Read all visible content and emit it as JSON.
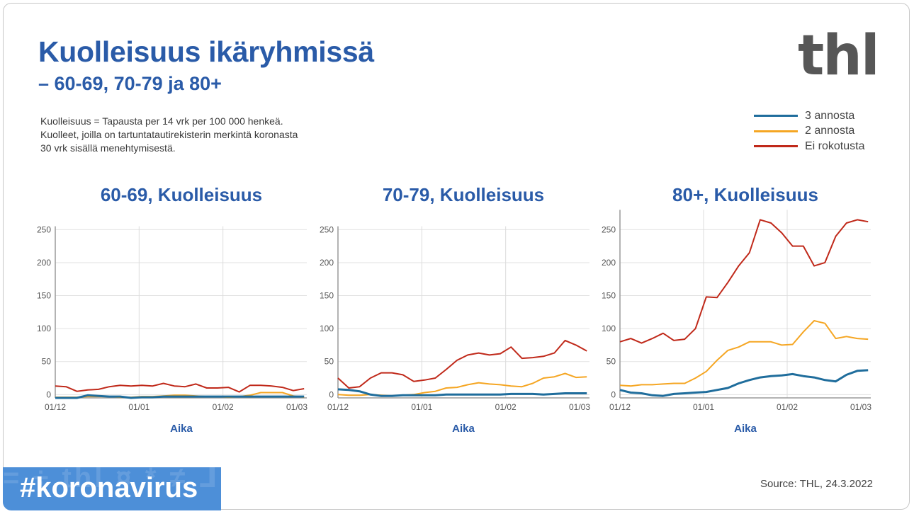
{
  "header": {
    "title": "Kuolleisuus ikäryhmissä",
    "subtitle": "– 60-69, 70-79 ja 80+",
    "logo": "thl",
    "note": [
      "Kuolleisuus = Tapausta per 14 vrk per 100 000 henkeä.",
      "Kuolleet, joilla on tartuntatautirekisterin merkintä koronasta",
      "30 vrk sisällä menehtymisestä."
    ]
  },
  "legend": [
    {
      "label": "3 annosta",
      "color": "#1f6d9c"
    },
    {
      "label": "2 annosta",
      "color": "#f5a623"
    },
    {
      "label": "Ei rokotusta",
      "color": "#c0291a"
    }
  ],
  "footer": {
    "source": "Source: THL, 24.3.2022",
    "hashtag": "#koronavirus"
  },
  "chart_data": [
    {
      "type": "line",
      "title": "60-69, Kuolleisuus",
      "xlabel": "Aika",
      "ylabel": "",
      "ylim": [
        -5,
        255
      ],
      "yticks": [
        0,
        50,
        100,
        150,
        200,
        250
      ],
      "xticks": [
        {
          "date": "2021-12-01",
          "label": "01/12"
        },
        {
          "date": "2022-01-01",
          "label": "01/01"
        },
        {
          "date": "2022-02-01",
          "label": "01/02"
        },
        {
          "date": "2022-03-01",
          "label": "01/03"
        }
      ],
      "xlim": [
        "2021-12-01",
        "2022-03-04"
      ],
      "grid": true,
      "x": [
        "2021-12-01",
        "2021-12-05",
        "2021-12-09",
        "2021-12-13",
        "2021-12-17",
        "2021-12-21",
        "2021-12-25",
        "2021-12-29",
        "2022-01-02",
        "2022-01-06",
        "2022-01-10",
        "2022-01-14",
        "2022-01-18",
        "2022-01-22",
        "2022-01-26",
        "2022-01-30",
        "2022-02-03",
        "2022-02-07",
        "2022-02-11",
        "2022-02-15",
        "2022-02-19",
        "2022-02-23",
        "2022-02-27",
        "2022-03-03"
      ],
      "series": [
        {
          "name": "Ei rokotusta",
          "values": [
            13,
            12,
            5,
            7,
            8,
            12,
            14,
            13,
            14,
            13,
            17,
            13,
            12,
            16,
            10,
            10,
            11,
            4,
            14,
            14,
            13,
            11,
            6,
            9
          ]
        },
        {
          "name": "2 annosta",
          "values": [
            -4,
            -4,
            -4,
            -3,
            -3,
            -3,
            -4,
            -4,
            -3,
            -3,
            -2,
            -1,
            -1,
            -2,
            -3,
            -3,
            -4,
            -3,
            -1,
            3,
            3,
            3,
            -2,
            -4
          ]
        },
        {
          "name": "3 annosta",
          "values": [
            -5,
            -5,
            -5,
            -1,
            -2,
            -3,
            -3,
            -5,
            -4,
            -4,
            -3,
            -3,
            -3,
            -3,
            -3,
            -3,
            -3,
            -3,
            -3,
            -3,
            -3,
            -3,
            -3,
            -3
          ]
        }
      ]
    },
    {
      "type": "line",
      "title": "70-79, Kuolleisuus",
      "xlabel": "Aika",
      "ylabel": "",
      "ylim": [
        -5,
        255
      ],
      "yticks": [
        0,
        50,
        100,
        150,
        200,
        250
      ],
      "xticks": [
        {
          "date": "2021-12-01",
          "label": "01/12"
        },
        {
          "date": "2022-01-01",
          "label": "01/01"
        },
        {
          "date": "2022-02-01",
          "label": "01/02"
        },
        {
          "date": "2022-03-01",
          "label": "01/03"
        }
      ],
      "xlim": [
        "2021-12-01",
        "2022-03-04"
      ],
      "grid": true,
      "x": [
        "2021-12-01",
        "2021-12-05",
        "2021-12-09",
        "2021-12-13",
        "2021-12-17",
        "2021-12-21",
        "2021-12-25",
        "2021-12-29",
        "2022-01-02",
        "2022-01-06",
        "2022-01-10",
        "2022-01-14",
        "2022-01-18",
        "2022-01-22",
        "2022-01-26",
        "2022-01-30",
        "2022-02-03",
        "2022-02-07",
        "2022-02-11",
        "2022-02-15",
        "2022-02-19",
        "2022-02-23",
        "2022-02-27",
        "2022-03-03"
      ],
      "series": [
        {
          "name": "Ei rokotusta",
          "values": [
            25,
            10,
            12,
            25,
            33,
            33,
            30,
            20,
            22,
            25,
            38,
            52,
            60,
            63,
            60,
            62,
            72,
            55,
            56,
            58,
            63,
            82,
            75,
            66
          ]
        },
        {
          "name": "2 annosta",
          "values": [
            0,
            -1,
            -1,
            0,
            -1,
            -2,
            -1,
            0,
            3,
            5,
            10,
            11,
            15,
            18,
            16,
            15,
            13,
            12,
            17,
            25,
            27,
            32,
            26,
            27
          ]
        },
        {
          "name": "3 annosta",
          "values": [
            8,
            7,
            5,
            0,
            -2,
            -2,
            -1,
            -1,
            -1,
            -1,
            0,
            0,
            0,
            0,
            0,
            0,
            1,
            1,
            1,
            0,
            1,
            2,
            2,
            2
          ]
        }
      ]
    },
    {
      "type": "line",
      "title": "80+, Kuolleisuus",
      "xlabel": "Aika",
      "ylabel": "",
      "ylim": [
        -5,
        280
      ],
      "yticks": [
        0,
        50,
        100,
        150,
        200,
        250
      ],
      "xticks": [
        {
          "date": "2021-12-01",
          "label": "01/12"
        },
        {
          "date": "2022-01-01",
          "label": "01/01"
        },
        {
          "date": "2022-02-01",
          "label": "01/02"
        },
        {
          "date": "2022-03-01",
          "label": "01/03"
        }
      ],
      "xlim": [
        "2021-12-01",
        "2022-03-04"
      ],
      "grid": true,
      "x": [
        "2021-12-01",
        "2021-12-05",
        "2021-12-09",
        "2021-12-13",
        "2021-12-17",
        "2021-12-21",
        "2021-12-25",
        "2021-12-29",
        "2022-01-02",
        "2022-01-06",
        "2022-01-10",
        "2022-01-14",
        "2022-01-18",
        "2022-01-22",
        "2022-01-26",
        "2022-01-30",
        "2022-02-03",
        "2022-02-07",
        "2022-02-11",
        "2022-02-15",
        "2022-02-19",
        "2022-02-23",
        "2022-02-27",
        "2022-03-03"
      ],
      "series": [
        {
          "name": "Ei rokotusta",
          "values": [
            80,
            85,
            78,
            85,
            93,
            82,
            84,
            100,
            148,
            147,
            170,
            195,
            215,
            265,
            260,
            245,
            225,
            225,
            195,
            200,
            240,
            260,
            265,
            262
          ]
        },
        {
          "name": "2 annosta",
          "values": [
            14,
            13,
            15,
            15,
            16,
            17,
            17,
            25,
            35,
            52,
            67,
            72,
            80,
            80,
            80,
            75,
            76,
            95,
            112,
            108,
            85,
            88,
            85,
            84
          ]
        },
        {
          "name": "3 annosta",
          "values": [
            7,
            3,
            2,
            -1,
            -2,
            1,
            2,
            3,
            4,
            7,
            10,
            17,
            22,
            26,
            28,
            29,
            31,
            28,
            26,
            22,
            20,
            30,
            36,
            37
          ]
        }
      ]
    }
  ]
}
